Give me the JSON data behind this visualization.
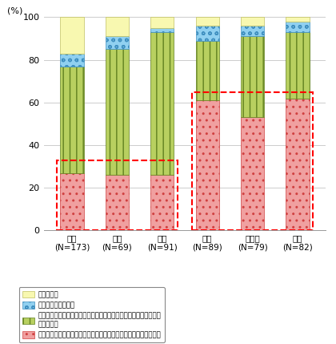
{
  "categories": [
    "日本\n(N=173)",
    "英国\n(N=69)",
    "韓国\n(N=91)",
    "米国\n(N=89)",
    "ドイツ\n(N=79)",
    "中国\n(N=82)"
  ],
  "series": {
    "red": [
      27,
      26,
      26,
      61,
      53,
      62
    ],
    "green": [
      50,
      59,
      67,
      28,
      38,
      31
    ],
    "blue": [
      6,
      6,
      2,
      7,
      5,
      5
    ],
    "yellow": [
      17,
      9,
      5,
      4,
      4,
      2
    ]
  },
  "colors": {
    "red": "#f0a0a0",
    "green": "#b8d060",
    "blue": "#90d0f0",
    "yellow": "#f8f8b0"
  },
  "hatch_edge_colors": {
    "red": "#d04040",
    "green": "#608020",
    "blue": "#4090c0",
    "yellow": "#c0c060"
  },
  "ylabel": "(%)",
  "ylim": [
    0,
    100
  ],
  "yticks": [
    0,
    20,
    40,
    60,
    80,
    100
  ],
  "legend_labels": [
    "わからない",
    "標準化に関心はない",
    "自ら標準化活動に取り組んでいないが、標準化が進展することを期\n待している",
    "自ら標準化活動に取り組んでいる、または今後取り組む予定である"
  ],
  "dashed_level1": 33,
  "dashed_level2": 65,
  "background_color": "#ffffff",
  "grid_color": "#cccccc"
}
